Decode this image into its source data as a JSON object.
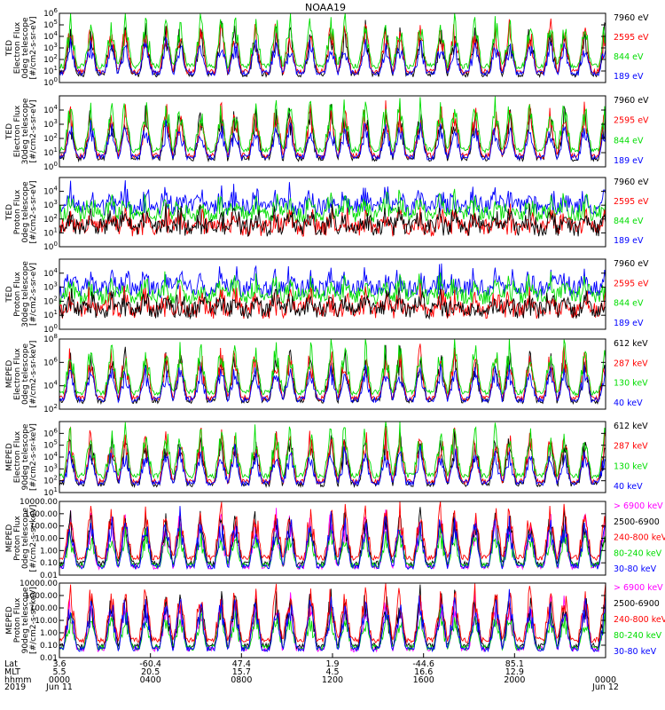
{
  "chart_data": {
    "type": "line",
    "title": "NOAA19",
    "grid": false,
    "panels": [
      {
        "ylabel": [
          "TED",
          "Electron Flux",
          "0deg telescope",
          "[#/cm2-s-sr-eV]"
        ],
        "ylim": [
          1,
          1000000
        ],
        "log": true,
        "ticks": [
          {
            "v": 1,
            "t": "10^0"
          },
          {
            "v": 10,
            "t": "10^1"
          },
          {
            "v": 100,
            "t": "10^2"
          },
          {
            "v": 1000,
            "t": "10^3"
          },
          {
            "v": 10000,
            "t": "10^4"
          },
          {
            "v": 100000,
            "t": "10^5"
          },
          {
            "v": 1000000,
            "t": "10^6"
          }
        ],
        "series": [
          {
            "name": "7960 eV",
            "color": "#000000"
          },
          {
            "name": "2595 eV",
            "color": "#ff0000"
          },
          {
            "name": "844 eV",
            "color": "#00dd00"
          },
          {
            "name": "189 eV",
            "color": "#0000ff"
          }
        ]
      },
      {
        "ylabel": [
          "TED",
          "Electron Flux",
          "30deg telescope",
          "[#/cm2-s-sr-eV]"
        ],
        "ylim": [
          1,
          100000
        ],
        "log": true,
        "ticks": [
          {
            "v": 1,
            "t": "10^0"
          },
          {
            "v": 10,
            "t": "10^1"
          },
          {
            "v": 100,
            "t": "10^2"
          },
          {
            "v": 1000,
            "t": "10^3"
          },
          {
            "v": 10000,
            "t": "10^4"
          }
        ],
        "series": [
          {
            "name": "7960 eV",
            "color": "#000000"
          },
          {
            "name": "2595 eV",
            "color": "#ff0000"
          },
          {
            "name": "844 eV",
            "color": "#00dd00"
          },
          {
            "name": "189 eV",
            "color": "#0000ff"
          }
        ]
      },
      {
        "ylabel": [
          "TED",
          "Proton Flux",
          "0deg telescope",
          "[#/cm2-s-sr-eV]"
        ],
        "ylim": [
          1,
          100000
        ],
        "log": true,
        "ticks": [
          {
            "v": 1,
            "t": "10^0"
          },
          {
            "v": 10,
            "t": "10^1"
          },
          {
            "v": 100,
            "t": "10^2"
          },
          {
            "v": 1000,
            "t": "10^3"
          },
          {
            "v": 10000,
            "t": "10^4"
          }
        ],
        "series": [
          {
            "name": "7960 eV",
            "color": "#000000"
          },
          {
            "name": "2595 eV",
            "color": "#ff0000"
          },
          {
            "name": "844 eV",
            "color": "#00dd00"
          },
          {
            "name": "189 eV",
            "color": "#0000ff"
          }
        ]
      },
      {
        "ylabel": [
          "TED",
          "Proton Flux",
          "30deg telescope",
          "[#/cm2-s-sr-eV]"
        ],
        "ylim": [
          1,
          100000
        ],
        "log": true,
        "ticks": [
          {
            "v": 1,
            "t": "10^0"
          },
          {
            "v": 10,
            "t": "10^1"
          },
          {
            "v": 100,
            "t": "10^2"
          },
          {
            "v": 1000,
            "t": "10^3"
          },
          {
            "v": 10000,
            "t": "10^4"
          }
        ],
        "series": [
          {
            "name": "7960 eV",
            "color": "#000000"
          },
          {
            "name": "2595 eV",
            "color": "#ff0000"
          },
          {
            "name": "844 eV",
            "color": "#00dd00"
          },
          {
            "name": "189 eV",
            "color": "#0000ff"
          }
        ]
      },
      {
        "ylabel": [
          "MEPED",
          "Electron Flux",
          "0deg telescope",
          "[#/cm2-s-sr-keV]"
        ],
        "ylim": [
          100,
          100000000
        ],
        "log": true,
        "ticks": [
          {
            "v": 100,
            "t": "10^2"
          },
          {
            "v": 10000,
            "t": "10^4"
          },
          {
            "v": 1000000,
            "t": "10^6"
          },
          {
            "v": 100000000,
            "t": "10^8"
          }
        ],
        "series": [
          {
            "name": "612 keV",
            "color": "#000000"
          },
          {
            "name": "287 keV",
            "color": "#ff0000"
          },
          {
            "name": "130 keV",
            "color": "#00dd00"
          },
          {
            "name": "40 keV",
            "color": "#0000ff"
          }
        ]
      },
      {
        "ylabel": [
          "MEPED",
          "Electron Flux",
          "90deg telescope",
          "[#/cm2-s-sr-keV]"
        ],
        "ylim": [
          10,
          10000000
        ],
        "log": true,
        "ticks": [
          {
            "v": 10,
            "t": "10^1"
          },
          {
            "v": 100,
            "t": "10^2"
          },
          {
            "v": 1000,
            "t": "10^3"
          },
          {
            "v": 10000,
            "t": "10^4"
          },
          {
            "v": 100000,
            "t": "10^5"
          },
          {
            "v": 1000000,
            "t": "10^6"
          }
        ],
        "series": [
          {
            "name": "612 keV",
            "color": "#000000"
          },
          {
            "name": "287 keV",
            "color": "#ff0000"
          },
          {
            "name": "130 keV",
            "color": "#00dd00"
          },
          {
            "name": "40 keV",
            "color": "#0000ff"
          }
        ]
      },
      {
        "ylabel": [
          "MEPED",
          "Proton Flux",
          "0deg telescope",
          "[#/cm2-s-sr-keV]"
        ],
        "ylim": [
          0.01,
          10000
        ],
        "log": true,
        "ticks": [
          {
            "v": 0.01,
            "t": "0.01"
          },
          {
            "v": 0.1,
            "t": "0.10"
          },
          {
            "v": 1,
            "t": "1.00"
          },
          {
            "v": 10,
            "t": "10.00"
          },
          {
            "v": 100,
            "t": "100.00"
          },
          {
            "v": 1000,
            "t": "1000.00"
          },
          {
            "v": 10000,
            "t": "10000.00"
          }
        ],
        "series": [
          {
            "name": "> 6900 keV",
            "color": "#ff00ff"
          },
          {
            "name": "2500-6900",
            "color": "#000000"
          },
          {
            "name": "240-800 keV",
            "color": "#ff0000"
          },
          {
            "name": "80-240 keV",
            "color": "#00dd00"
          },
          {
            "name": "30-80 keV",
            "color": "#0000ff"
          }
        ]
      },
      {
        "ylabel": [
          "MEPED",
          "Proton Flux",
          "90deg telescope",
          "[#/cm2-s-sr-keV]"
        ],
        "ylim": [
          0.01,
          10000
        ],
        "log": true,
        "ticks": [
          {
            "v": 0.01,
            "t": "0.01"
          },
          {
            "v": 0.1,
            "t": "0.10"
          },
          {
            "v": 1,
            "t": "1.00"
          },
          {
            "v": 10,
            "t": "10.00"
          },
          {
            "v": 100,
            "t": "100.00"
          },
          {
            "v": 1000,
            "t": "1000.00"
          },
          {
            "v": 10000,
            "t": "10000.00"
          }
        ],
        "series": [
          {
            "name": "> 6900 keV",
            "color": "#ff00ff"
          },
          {
            "name": "2500-6900",
            "color": "#000000"
          },
          {
            "name": "240-800 keV",
            "color": "#ff0000"
          },
          {
            "name": "80-240 keV",
            "color": "#00dd00"
          },
          {
            "name": "30-80 keV",
            "color": "#0000ff"
          }
        ]
      }
    ],
    "xaxis": {
      "row_labels": [
        "Lat",
        "MLT",
        "hhmm",
        "2019"
      ],
      "groups": [
        {
          "frac": 0.0,
          "values": [
            "3.6",
            "5.5",
            "0000",
            "Jun 11"
          ]
        },
        {
          "frac": 0.1667,
          "values": [
            "-60.4",
            "20.5",
            "0400",
            ""
          ]
        },
        {
          "frac": 0.3333,
          "values": [
            "47.4",
            "15.7",
            "0800",
            ""
          ]
        },
        {
          "frac": 0.5,
          "values": [
            "1.9",
            "4.5",
            "1200",
            ""
          ]
        },
        {
          "frac": 0.6667,
          "values": [
            "-44.6",
            "16.6",
            "1600",
            ""
          ]
        },
        {
          "frac": 0.8333,
          "values": [
            "85.1",
            "12.9",
            "2000",
            ""
          ]
        },
        {
          "frac": 1.0,
          "values": [
            "",
            "",
            "0000",
            "Jun 12"
          ]
        }
      ]
    }
  }
}
